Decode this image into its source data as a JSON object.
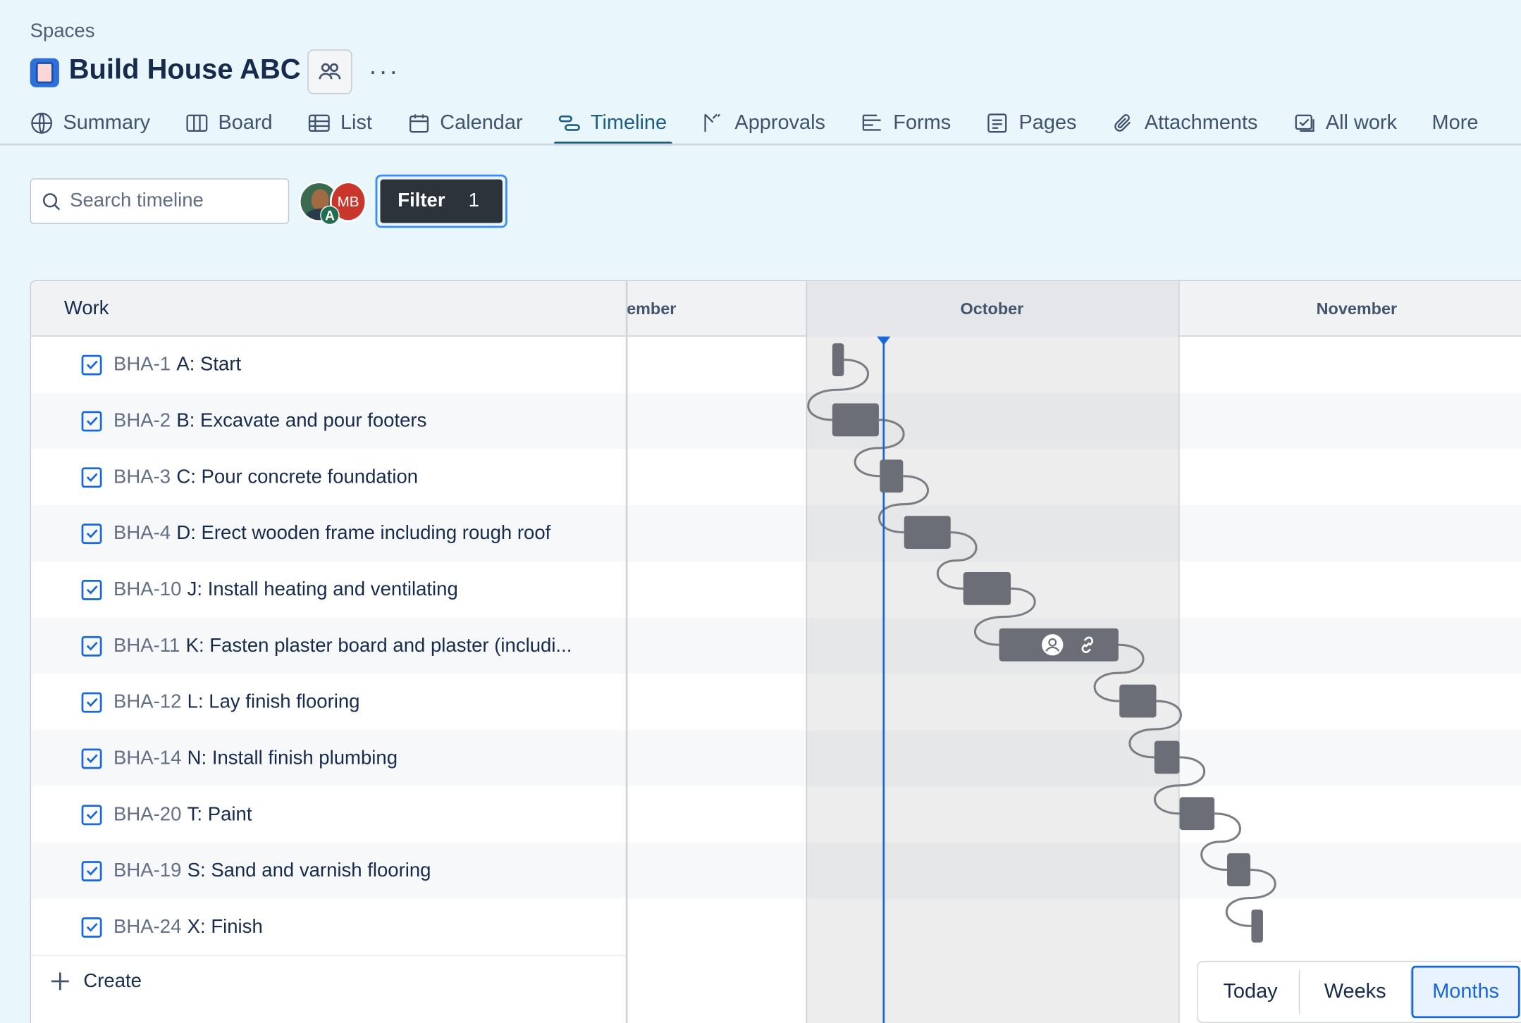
{
  "header": {
    "breadcrumb": "Spaces",
    "title": "Build House ABC",
    "team_icon": "people-icon",
    "more_icon": "more-horizontal-icon"
  },
  "tabs": [
    {
      "label": "Summary",
      "icon": "globe-icon"
    },
    {
      "label": "Board",
      "icon": "board-icon"
    },
    {
      "label": "List",
      "icon": "list-icon"
    },
    {
      "label": "Calendar",
      "icon": "calendar-icon"
    },
    {
      "label": "Timeline",
      "icon": "timeline-icon",
      "active": true
    },
    {
      "label": "Approvals",
      "icon": "approvals-icon"
    },
    {
      "label": "Forms",
      "icon": "forms-icon"
    },
    {
      "label": "Pages",
      "icon": "pages-icon"
    },
    {
      "label": "Attachments",
      "icon": "paperclip-icon"
    },
    {
      "label": "All work",
      "icon": "all-work-icon"
    },
    {
      "label": "More",
      "icon": ""
    }
  ],
  "toolbar": {
    "search_placeholder": "Search timeline",
    "avatar_badge": "A",
    "avatar2_initials": "MB",
    "filter_label": "Filter",
    "filter_count": "1"
  },
  "timeline": {
    "work_header": "Work",
    "months": [
      "ember",
      "October",
      "November"
    ],
    "rows": [
      {
        "key": "BHA-1",
        "title": "A: Start"
      },
      {
        "key": "BHA-2",
        "title": "B: Excavate and pour footers"
      },
      {
        "key": "BHA-3",
        "title": "C: Pour concrete foundation"
      },
      {
        "key": "BHA-4",
        "title": "D: Erect wooden frame including rough roof"
      },
      {
        "key": "BHA-10",
        "title": "J: Install heating and ventilating"
      },
      {
        "key": "BHA-11",
        "title": "K: Fasten plaster board and plaster (includi..."
      },
      {
        "key": "BHA-12",
        "title": "L: Lay finish flooring"
      },
      {
        "key": "BHA-14",
        "title": "N: Install finish plumbing"
      },
      {
        "key": "BHA-20",
        "title": "T: Paint"
      },
      {
        "key": "BHA-19",
        "title": "S: Sand and varnish flooring"
      },
      {
        "key": "BHA-24",
        "title": "X: Finish"
      }
    ],
    "create_label": "Create"
  },
  "zoom": {
    "today": "Today",
    "weeks": "Weeks",
    "months": "Months",
    "active": "Months"
  }
}
